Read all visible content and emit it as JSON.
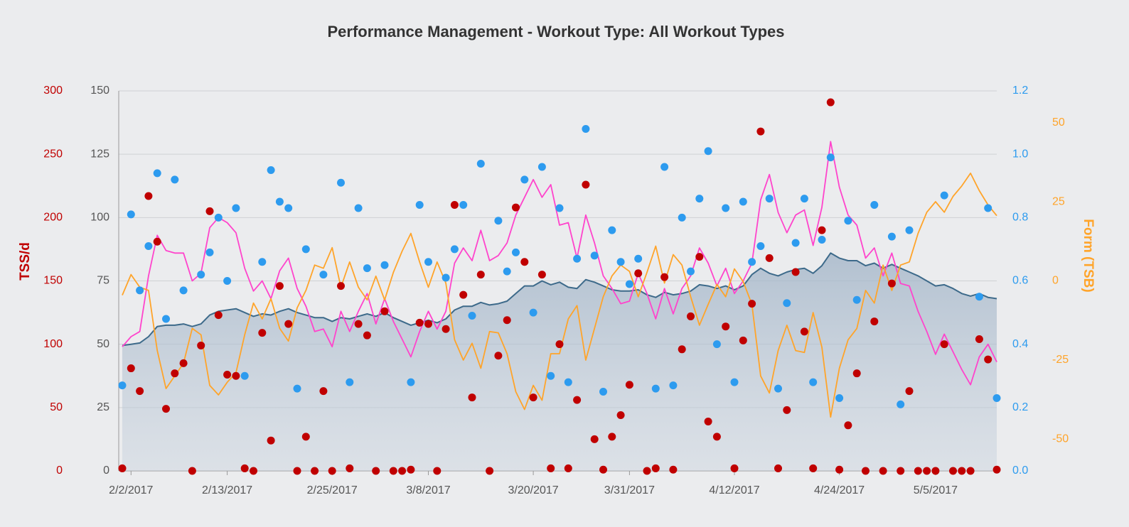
{
  "chart_data": {
    "type": "combo",
    "title": "Performance Management - Workout Type: All Workout Types",
    "x": [
      "2/1/2017",
      "2/2/2017",
      "2/3/2017",
      "2/4/2017",
      "2/5/2017",
      "2/6/2017",
      "2/7/2017",
      "2/8/2017",
      "2/9/2017",
      "2/10/2017",
      "2/11/2017",
      "2/12/2017",
      "2/13/2017",
      "2/14/2017",
      "2/15/2017",
      "2/16/2017",
      "2/17/2017",
      "2/18/2017",
      "2/19/2017",
      "2/20/2017",
      "2/21/2017",
      "2/22/2017",
      "2/23/2017",
      "2/24/2017",
      "2/25/2017",
      "2/26/2017",
      "2/27/2017",
      "2/28/2017",
      "3/1/2017",
      "3/2/2017",
      "3/3/2017",
      "3/4/2017",
      "3/5/2017",
      "3/6/2017",
      "3/7/2017",
      "3/8/2017",
      "3/9/2017",
      "3/10/2017",
      "3/11/2017",
      "3/12/2017",
      "3/13/2017",
      "3/14/2017",
      "3/15/2017",
      "3/16/2017",
      "3/17/2017",
      "3/18/2017",
      "3/19/2017",
      "3/20/2017",
      "3/21/2017",
      "3/22/2017",
      "3/23/2017",
      "3/24/2017",
      "3/25/2017",
      "3/26/2017",
      "3/27/2017",
      "3/28/2017",
      "3/29/2017",
      "3/30/2017",
      "3/31/2017",
      "4/1/2017",
      "4/2/2017",
      "4/3/2017",
      "4/4/2017",
      "4/5/2017",
      "4/6/2017",
      "4/7/2017",
      "4/8/2017",
      "4/9/2017",
      "4/10/2017",
      "4/11/2017",
      "4/12/2017",
      "4/13/2017",
      "4/14/2017",
      "4/15/2017",
      "4/16/2017",
      "4/17/2017",
      "4/18/2017",
      "4/19/2017",
      "4/20/2017",
      "4/21/2017",
      "4/22/2017",
      "4/23/2017",
      "4/24/2017",
      "4/25/2017",
      "4/26/2017",
      "4/27/2017",
      "4/28/2017",
      "4/29/2017",
      "4/30/2017",
      "5/1/2017",
      "5/2/2017",
      "5/3/2017",
      "5/4/2017",
      "5/5/2017",
      "5/6/2017",
      "5/7/2017",
      "5/8/2017",
      "5/9/2017",
      "5/10/2017",
      "5/11/2017",
      "5/12/2017"
    ],
    "xticks": [
      "2/2/2017",
      "2/13/2017",
      "2/25/2017",
      "3/8/2017",
      "3/20/2017",
      "3/31/2017",
      "4/12/2017",
      "4/24/2017",
      "5/5/2017"
    ],
    "ylim": [
      0,
      150
    ],
    "yticks": [
      0,
      25,
      50,
      75,
      100,
      125,
      150
    ],
    "ycolor": "#555555",
    "grid": true,
    "y_tss": {
      "label": "TSS/d",
      "lim": [
        0,
        300
      ],
      "ticks": [
        0,
        50,
        100,
        150,
        200,
        250,
        300
      ],
      "color": "#c00000"
    },
    "y_if": {
      "lim": [
        0,
        1.2
      ],
      "ticks": [
        {
          "value": 0,
          "label": "0.0"
        },
        0.2,
        0.4,
        0.6,
        0.8,
        {
          "value": 1,
          "label": "1.0"
        },
        1.2
      ],
      "color": "#2d9bef"
    },
    "y2": {
      "label": "Form (TSB)",
      "lim": [
        -60,
        60
      ],
      "ticks": [
        50,
        25,
        0,
        -25,
        -50
      ],
      "color": "#ffa42a"
    },
    "series": [
      {
        "type": "area",
        "axis": "y",
        "color": "#3d6a8a",
        "values": [
          49.5,
          50,
          50.5,
          53,
          57,
          57.5,
          57.5,
          58,
          57,
          58,
          61.5,
          63,
          63.5,
          64,
          62.5,
          61,
          62,
          61.5,
          63,
          64,
          62.5,
          61.5,
          60.5,
          60.5,
          59,
          60.5,
          60,
          61,
          62,
          61,
          62.5,
          60.5,
          59,
          57.5,
          58.5,
          59.5,
          58.5,
          60,
          63.5,
          65,
          65,
          66.5,
          65.5,
          66,
          67,
          70,
          73,
          73,
          75,
          73.5,
          74.5,
          72.5,
          72,
          75.5,
          74.5,
          73,
          71.5,
          71,
          71,
          71.5,
          69.5,
          68.5,
          70.5,
          69.5,
          70,
          71,
          73.5,
          73,
          72,
          73,
          71.5,
          73,
          77.5,
          80,
          78,
          77,
          78.5,
          79.5,
          80,
          78,
          81,
          86,
          84,
          83,
          83,
          81,
          82,
          80,
          81.5,
          80,
          78.5,
          77,
          75,
          73,
          73.5,
          72,
          70,
          69,
          70,
          68.5,
          68
        ]
      },
      {
        "type": "line",
        "axis": "y",
        "color": "#ff44cc",
        "values": [
          49,
          53,
          55,
          77,
          93,
          87,
          86,
          86,
          75,
          78,
          96,
          100,
          98,
          94,
          80,
          71,
          75,
          68,
          79,
          84,
          72,
          65,
          55,
          56,
          49,
          63,
          55,
          63,
          70,
          58,
          68,
          59,
          52,
          45,
          55,
          63,
          56,
          63,
          82,
          88,
          83,
          95,
          83,
          85,
          90,
          101,
          108,
          115,
          108,
          113,
          97,
          98,
          84,
          101,
          90,
          77,
          72,
          66,
          67,
          78,
          70,
          60,
          72,
          62,
          72,
          77,
          88,
          82,
          73,
          80,
          70,
          75,
          82,
          107,
          117,
          102,
          94,
          101,
          103,
          89,
          104,
          130,
          112,
          101,
          97,
          84,
          88,
          77,
          86,
          74,
          73,
          63,
          55,
          46,
          54,
          47,
          40,
          34,
          45,
          50,
          43
        ]
      },
      {
        "type": "line",
        "axis": "y2",
        "color": "#ffa42a",
        "values": [
          -4.5,
          2,
          -2,
          -3,
          -22,
          -34,
          -30,
          -26,
          -15,
          -17,
          -33,
          -36,
          -32,
          -29,
          -17,
          -7,
          -12,
          -5.6,
          -15,
          -19,
          -8.5,
          -3,
          5,
          4,
          10.5,
          -2,
          6,
          -2,
          -6,
          1.5,
          -6,
          2.7,
          9.4,
          15,
          6,
          -2,
          6,
          -0.7,
          -18.6,
          -25,
          -19.7,
          -27.6,
          -16,
          -16.4,
          -23,
          -35,
          -40.6,
          -33,
          -37.7,
          -23,
          -23,
          -12,
          -7.8,
          -25,
          -15,
          -5,
          1.6,
          5,
          3,
          -5,
          2.7,
          11,
          -0.7,
          8.3,
          5,
          -5,
          -14,
          -7.4,
          -1.1,
          -5,
          3.8,
          -0.2,
          -7.4,
          -30,
          -35.4,
          -22,
          -14,
          -22,
          -22.6,
          -10,
          -20.9,
          -43,
          -27.6,
          -18.6,
          -15,
          -3,
          -7,
          5,
          -3,
          5,
          6,
          15,
          21.7,
          25,
          21.7,
          26.7,
          30,
          34,
          28.5,
          24,
          20.6
        ]
      },
      {
        "type": "scatter",
        "axis": "y_tss",
        "color": "#c00000",
        "values": [
          2,
          81,
          63,
          217,
          181,
          49,
          77,
          85,
          0,
          99,
          205,
          123,
          76,
          75,
          2,
          0,
          109,
          24,
          146,
          116,
          0,
          27,
          0,
          63,
          0,
          146,
          2,
          116,
          107,
          0,
          126,
          0,
          0,
          1,
          117,
          116,
          0,
          112,
          210,
          139,
          58,
          155,
          0,
          91,
          119,
          208,
          165,
          58,
          155,
          2,
          100,
          2,
          56,
          226,
          25,
          1,
          27,
          44,
          68,
          156,
          0,
          2,
          153,
          1,
          96,
          122,
          169,
          39,
          27,
          114,
          2,
          103,
          132,
          268,
          168,
          2,
          48,
          157,
          110,
          2,
          190,
          291,
          1,
          36,
          77,
          0,
          118,
          0,
          148,
          0,
          63,
          0,
          0,
          0,
          100,
          0,
          0,
          0,
          104,
          88,
          1
        ]
      },
      {
        "type": "scatter",
        "axis": "y_if",
        "color": "#2d9bef",
        "values": [
          0.27,
          0.81,
          0.57,
          0.71,
          0.94,
          0.48,
          0.92,
          0.57,
          null,
          0.62,
          0.69,
          0.8,
          0.6,
          0.83,
          0.3,
          null,
          0.66,
          0.95,
          0.85,
          0.83,
          0.26,
          0.7,
          null,
          0.62,
          null,
          0.91,
          0.28,
          0.83,
          0.64,
          null,
          0.65,
          null,
          null,
          0.28,
          0.84,
          0.66,
          null,
          0.61,
          0.7,
          0.84,
          0.49,
          0.97,
          null,
          0.79,
          0.63,
          0.69,
          0.92,
          0.5,
          0.96,
          0.3,
          0.83,
          0.28,
          0.67,
          1.08,
          0.68,
          0.25,
          0.76,
          0.66,
          0.59,
          0.67,
          null,
          0.26,
          0.96,
          0.27,
          0.8,
          0.63,
          0.86,
          1.01,
          0.4,
          0.83,
          0.28,
          0.85,
          0.66,
          0.71,
          0.86,
          0.26,
          0.53,
          0.72,
          0.86,
          0.28,
          0.73,
          0.99,
          0.23,
          0.79,
          0.54,
          null,
          0.84,
          null,
          0.74,
          0.21,
          0.76,
          null,
          null,
          null,
          0.87,
          null,
          null,
          null,
          0.55,
          0.83,
          0.23
        ]
      }
    ]
  }
}
